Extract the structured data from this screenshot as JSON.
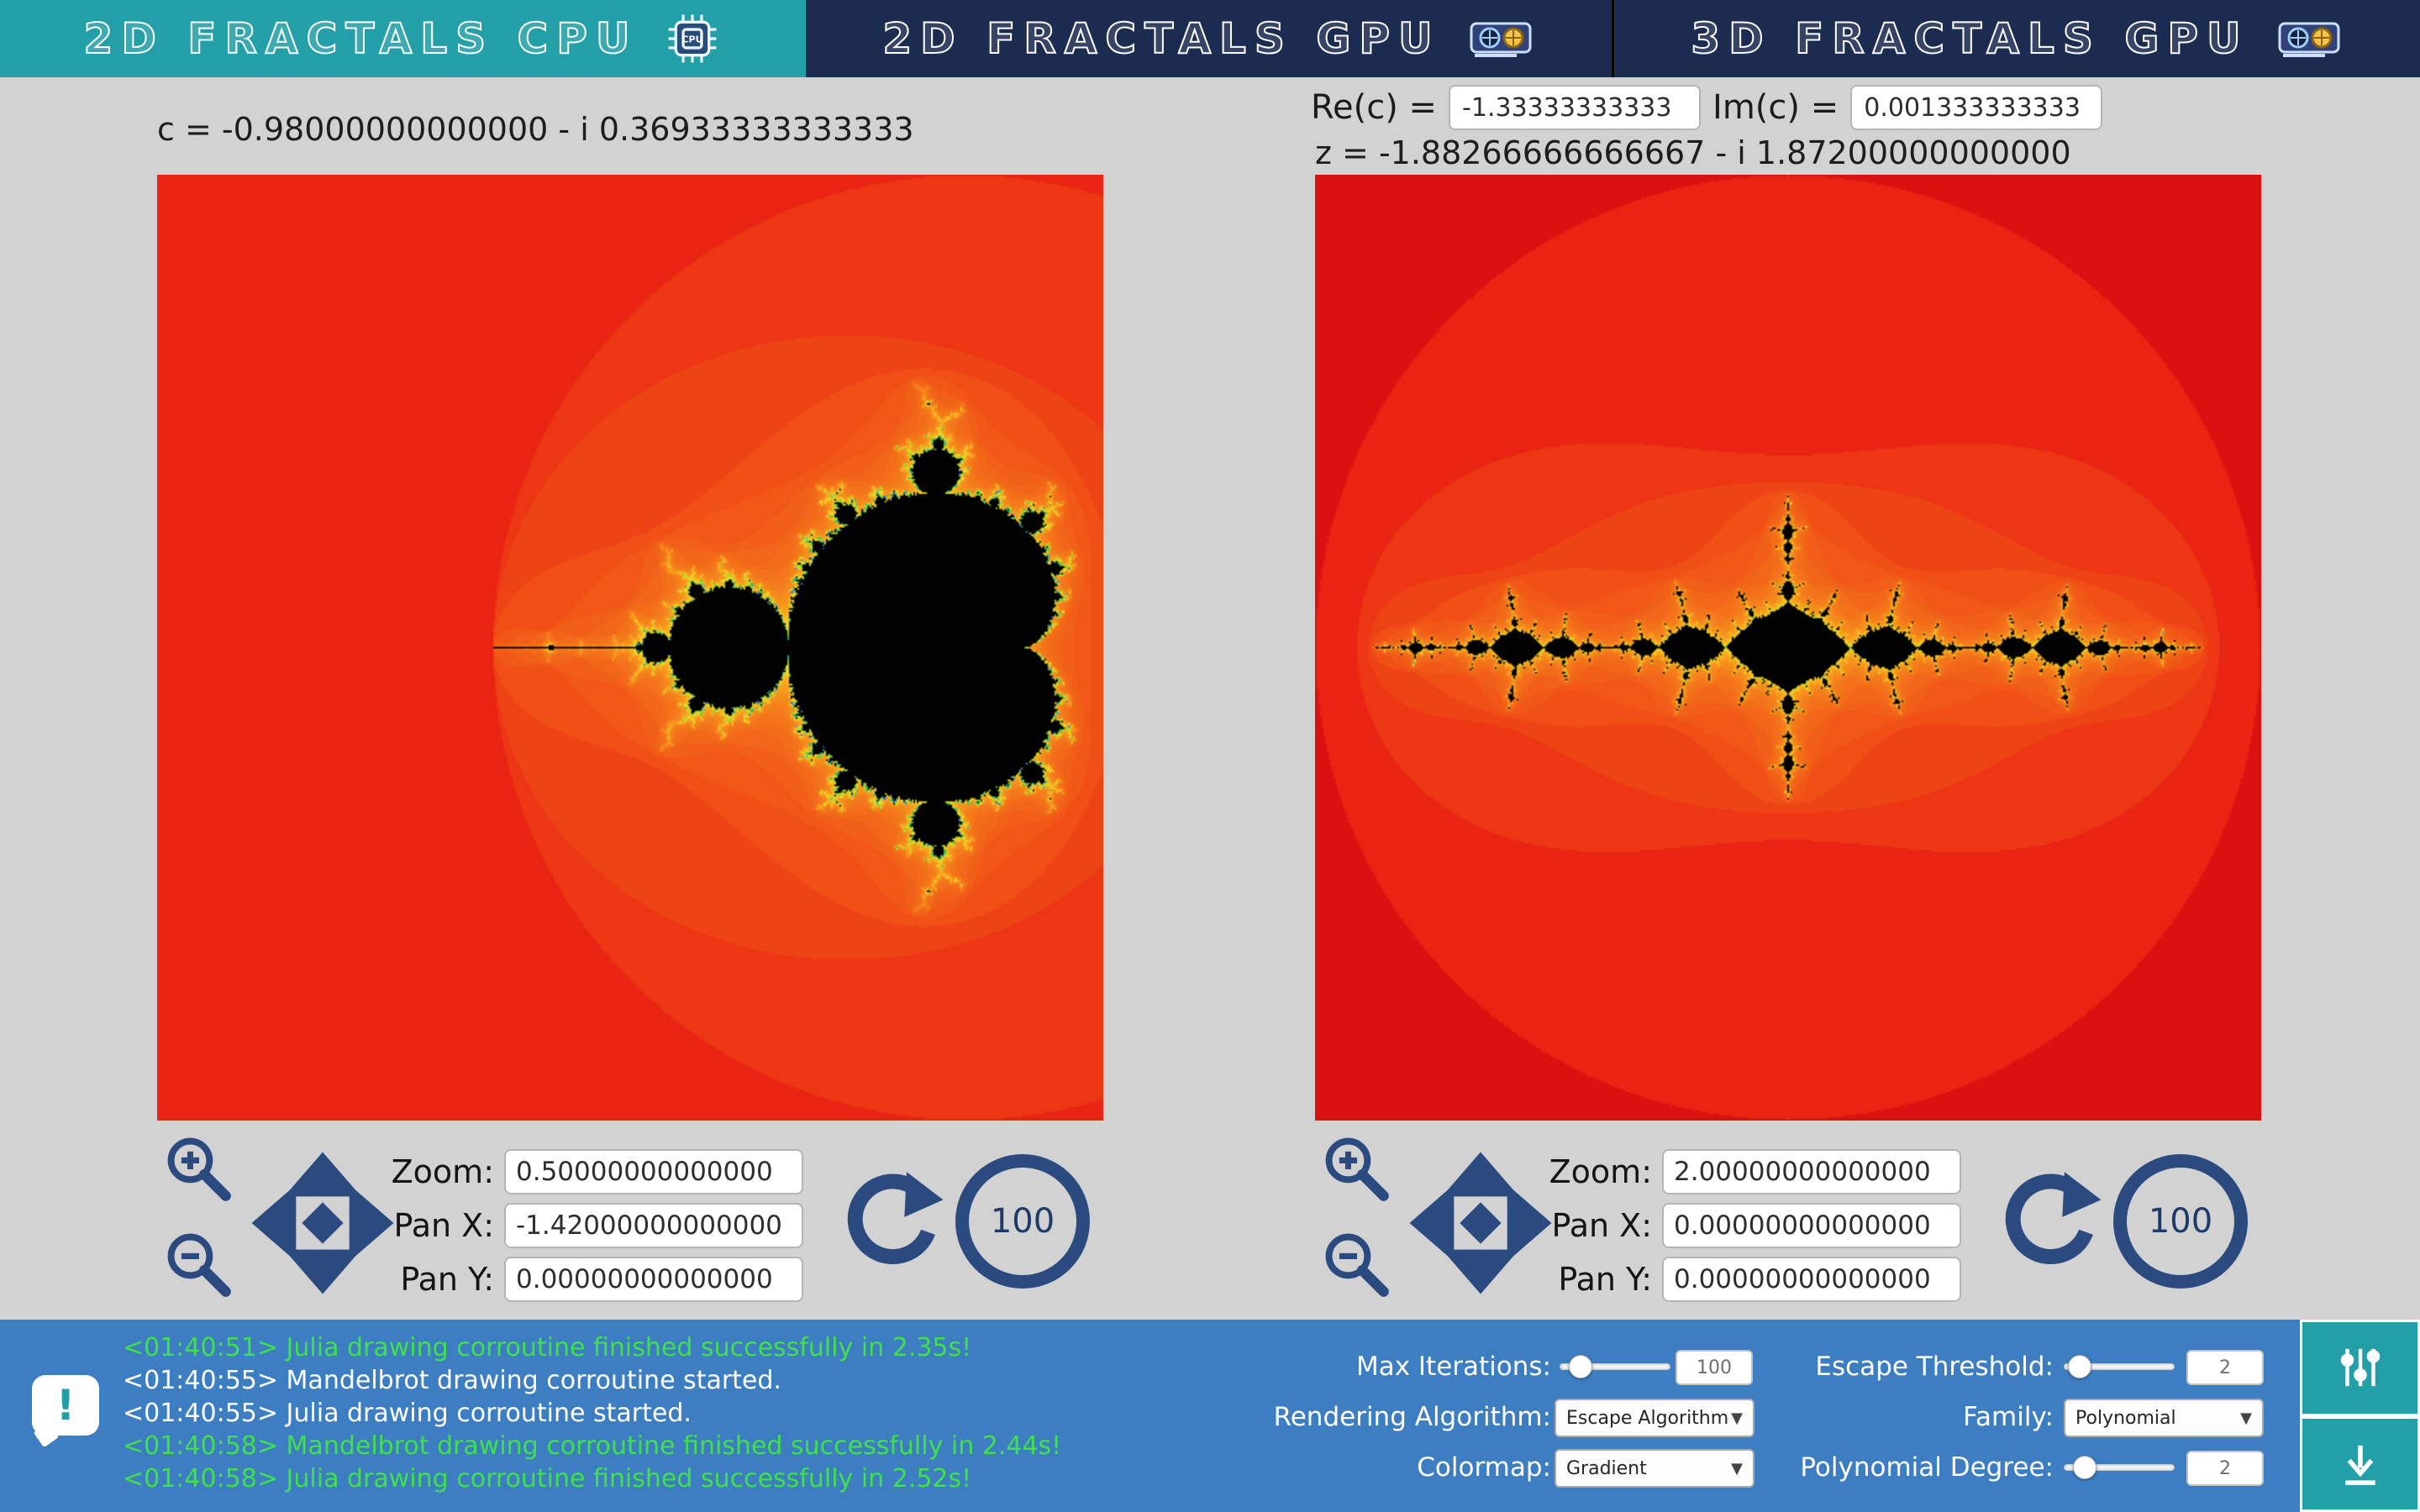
{
  "tabs": [
    {
      "label": "2D FRACTALS CPU",
      "icon": "cpu-icon",
      "active": true
    },
    {
      "label": "2D FRACTALS GPU",
      "icon": "gpu-icon",
      "active": false
    },
    {
      "label": "3D FRACTALS GPU",
      "icon": "gpu-icon",
      "active": false
    }
  ],
  "left_panel": {
    "c_label": "c = -0.98000000000000 - i 0.36933333333333",
    "zoom_label": "Zoom:",
    "pan_x_label": "Pan X:",
    "pan_y_label": "Pan Y:",
    "zoom_value": "0.50000000000000",
    "pan_x_value": "-1.42000000000000",
    "pan_y_value": "0.00000000000000",
    "progress": "100",
    "fractal": {
      "type": "mandelbrot",
      "center_re": -1.42,
      "center_im": 0,
      "half_range": 2.0,
      "max_iter": 100
    }
  },
  "right_panel": {
    "re_c_label": "Re(c) =",
    "re_c_value": "-1.33333333333",
    "im_c_label": "Im(c) =",
    "im_c_value": "0.001333333333",
    "z_label": "z = -1.88266666666667 - i 1.87200000000000",
    "zoom_label": "Zoom:",
    "pan_x_label": "Pan X:",
    "pan_y_label": "Pan Y:",
    "zoom_value": "2.00000000000000",
    "pan_x_value": "0.00000000000000",
    "pan_y_value": "0.00000000000000",
    "progress": "100",
    "fractal": {
      "type": "julia",
      "c_re": -1.33333333333,
      "c_im": 0.001333333333,
      "center_re": 0,
      "center_im": 0,
      "half_range": 2.0,
      "max_iter": 100
    }
  },
  "console": {
    "lines": [
      {
        "text": "<01:40:51> Julia drawing corroutine finished successfully in 2.35s!",
        "status": "success"
      },
      {
        "text": "<01:40:55> Mandelbrot drawing corroutine started.",
        "status": "info"
      },
      {
        "text": "<01:40:55> Julia drawing corroutine started.",
        "status": "info"
      },
      {
        "text": "<01:40:58> Mandelbrot drawing corroutine finished successfully in 2.44s!",
        "status": "success"
      },
      {
        "text": "<01:40:58> Julia drawing corroutine finished successfully in 2.52s!",
        "status": "success"
      }
    ]
  },
  "settings": {
    "max_iterations_label": "Max Iterations:",
    "max_iterations_value": "100",
    "rendering_algorithm_label": "Rendering Algorithm:",
    "rendering_algorithm_value": "Escape Algorithm",
    "colormap_label": "Colormap:",
    "colormap_value": "Gradient",
    "escape_threshold_label": "Escape Threshold:",
    "escape_threshold_value": "2",
    "family_label": "Family:",
    "family_value": "Polynomial",
    "polynomial_degree_label": "Polynomial Degree:",
    "polynomial_degree_value": "2"
  },
  "colors": {
    "teal_accent": "#239fa7",
    "navy_tab": "#1c2b50",
    "icon_navy": "#2b4a80",
    "bottom_bar_blue": "#3d7ec2",
    "log_success_green": "#3fe04a",
    "background_gray": "#d2d2d2"
  },
  "fractal_palette": {
    "inside": "#020202",
    "stops": [
      [
        0.0,
        "#d91111"
      ],
      [
        0.1,
        "#ea2412"
      ],
      [
        0.2,
        "#f04f16"
      ],
      [
        0.32,
        "#f4791b"
      ],
      [
        0.44,
        "#f8a71e"
      ],
      [
        0.55,
        "#f5d826"
      ],
      [
        0.65,
        "#c8e02c"
      ],
      [
        0.75,
        "#6fcb30"
      ],
      [
        0.83,
        "#2db94e"
      ],
      [
        0.9,
        "#1cc2a5"
      ],
      [
        0.96,
        "#2f7fd6"
      ],
      [
        1.0,
        "#3b34c9"
      ]
    ]
  }
}
